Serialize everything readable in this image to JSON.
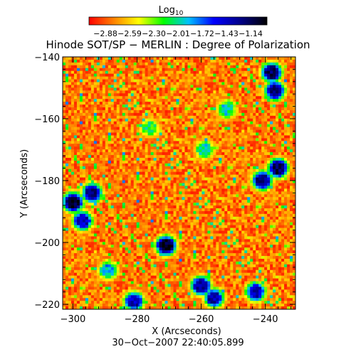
{
  "chart_data": {
    "type": "heatmap",
    "title": "Hinode SOT/SP − MERLIN : Degree of Polarization",
    "colorbar": {
      "label_main": "Log",
      "label_sub": "10",
      "ticks": [
        "−2.88",
        "−2.59",
        "−2.30",
        "−2.01",
        "−1.72",
        "−1.43",
        "−1.14"
      ],
      "range": [
        -2.88,
        -1.14
      ],
      "colormap": [
        "#ff0000",
        "#ff8c00",
        "#ffff00",
        "#00ff00",
        "#00c0ff",
        "#0000ff",
        "#000080",
        "#000000"
      ]
    },
    "xlabel": "X (Arcseconds)",
    "ylabel": "Y (Arcseconds)",
    "x_ticks": [
      "−300",
      "−280",
      "−260",
      "−240"
    ],
    "x_tick_values": [
      -300,
      -280,
      -260,
      -240
    ],
    "y_ticks": [
      "−140",
      "−160",
      "−180",
      "−200",
      "−220"
    ],
    "y_tick_values": [
      -140,
      -160,
      -180,
      -200,
      -220
    ],
    "xlim": [
      -303.2,
      -230.6
    ],
    "ylim": [
      -221.6,
      -140
    ],
    "timestamp": "30−Oct−2007 22:40:05.899",
    "features": [
      {
        "x": -238,
        "y": -145,
        "level": -1.3
      },
      {
        "x": -237,
        "y": -151,
        "level": -1.4
      },
      {
        "x": -236,
        "y": -176,
        "level": -1.3
      },
      {
        "x": -241,
        "y": -180,
        "level": -1.4
      },
      {
        "x": -300,
        "y": -187,
        "level": -1.2
      },
      {
        "x": -294,
        "y": -184,
        "level": -1.4
      },
      {
        "x": -297,
        "y": -193,
        "level": -1.5
      },
      {
        "x": -271,
        "y": -201,
        "level": -1.2
      },
      {
        "x": -260,
        "y": -214,
        "level": -1.4
      },
      {
        "x": -281,
        "y": -219,
        "level": -1.5
      },
      {
        "x": -256,
        "y": -218,
        "level": -1.5
      },
      {
        "x": -243,
        "y": -216,
        "level": -1.5
      },
      {
        "x": -289,
        "y": -209,
        "level": -1.9
      },
      {
        "x": -252,
        "y": -157,
        "level": -2.0
      },
      {
        "x": -276,
        "y": -163,
        "level": -2.1
      },
      {
        "x": -259,
        "y": -170,
        "level": -2.0
      }
    ]
  }
}
